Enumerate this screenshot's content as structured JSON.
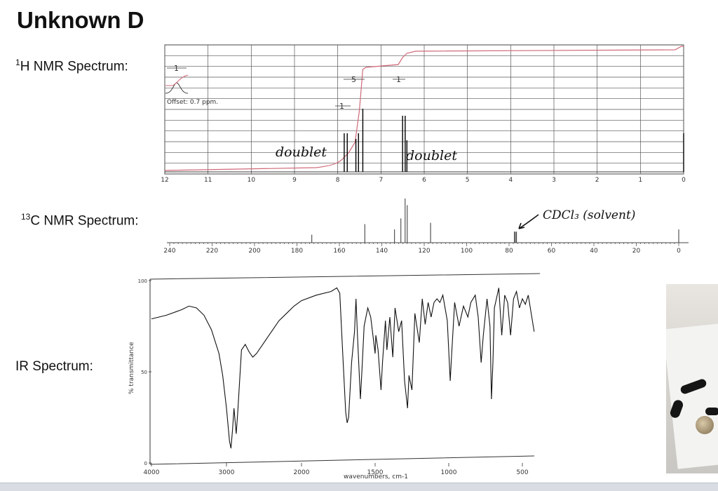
{
  "page": {
    "title": "Unknown D"
  },
  "labels": {
    "h_nmr_sup": "1",
    "h_nmr_text": "H NMR Spectrum:",
    "c_nmr_sup": "13",
    "c_nmr_text": "C NMR Spectrum:",
    "ir_text": "IR Spectrum:"
  },
  "annotations": {
    "offset": "Offset: 0.7 ppm.",
    "integ_1a": "1",
    "integ_1b": "1",
    "integ_5": "5",
    "integ_1c": "1",
    "doublet_left": "doublet",
    "doublet_right": "doublet",
    "solvent": "CDCl₃ (solvent)"
  },
  "chart_data": [
    {
      "type": "line",
      "name": "1H NMR",
      "x_range": [
        12,
        0
      ],
      "reversed": true,
      "x_ticks": [
        12,
        11,
        10,
        9,
        8,
        7,
        6,
        5,
        4,
        3,
        2,
        1,
        0
      ],
      "peaks_ppm": [
        {
          "x": 7.85,
          "h": 0.55
        },
        {
          "x": 7.78,
          "h": 0.55
        },
        {
          "x": 7.58,
          "h": 0.47
        },
        {
          "x": 7.52,
          "h": 0.55
        },
        {
          "x": 7.42,
          "h": 0.9
        },
        {
          "x": 6.5,
          "h": 0.8
        },
        {
          "x": 6.44,
          "h": 0.8
        },
        {
          "x": 6.4,
          "h": 0.45
        },
        {
          "x": 0.0,
          "h": 1.0
        }
      ],
      "integrals": [
        {
          "x": 7.8,
          "value": "1"
        },
        {
          "x": 7.5,
          "value": "5"
        },
        {
          "x": 6.45,
          "value": "1"
        }
      ]
    },
    {
      "type": "line",
      "name": "13C NMR",
      "x_range": [
        240,
        0
      ],
      "reversed": true,
      "x_ticks": [
        240,
        220,
        200,
        180,
        160,
        140,
        120,
        100,
        80,
        60,
        40,
        20,
        0
      ],
      "peaks_ppm": [
        {
          "x": 173,
          "h": 0.18
        },
        {
          "x": 148,
          "h": 0.42
        },
        {
          "x": 134,
          "h": 0.3
        },
        {
          "x": 131,
          "h": 0.55
        },
        {
          "x": 129,
          "h": 1.0
        },
        {
          "x": 128,
          "h": 0.85
        },
        {
          "x": 117,
          "h": 0.45
        },
        {
          "x": 77.5,
          "h": 0.25
        },
        {
          "x": 77,
          "h": 0.25
        },
        {
          "x": 76.5,
          "h": 0.25
        },
        {
          "x": 0,
          "h": 0.3
        }
      ]
    },
    {
      "type": "line",
      "name": "IR",
      "xlabel": "wavenumbers, cm-1",
      "ylabel": "% transmittance",
      "x_range": [
        4000,
        400
      ],
      "reversed": true,
      "y_range": [
        0,
        100
      ],
      "x_ticks": [
        4000,
        3000,
        2000,
        1500,
        1000,
        500
      ],
      "y_ticks": [
        0,
        50,
        100
      ],
      "points": [
        [
          4000,
          79
        ],
        [
          3800,
          81
        ],
        [
          3600,
          84
        ],
        [
          3500,
          86
        ],
        [
          3400,
          85
        ],
        [
          3300,
          81
        ],
        [
          3200,
          73
        ],
        [
          3100,
          60
        ],
        [
          3050,
          48
        ],
        [
          3000,
          30
        ],
        [
          2960,
          12
        ],
        [
          2940,
          8
        ],
        [
          2920,
          18
        ],
        [
          2900,
          30
        ],
        [
          2870,
          16
        ],
        [
          2850,
          28
        ],
        [
          2800,
          62
        ],
        [
          2750,
          65
        ],
        [
          2700,
          61
        ],
        [
          2650,
          58
        ],
        [
          2600,
          60
        ],
        [
          2500,
          66
        ],
        [
          2400,
          72
        ],
        [
          2300,
          78
        ],
        [
          2200,
          82
        ],
        [
          2100,
          86
        ],
        [
          2000,
          89
        ],
        [
          1900,
          92
        ],
        [
          1800,
          94
        ],
        [
          1760,
          96
        ],
        [
          1740,
          93
        ],
        [
          1720,
          60
        ],
        [
          1700,
          28
        ],
        [
          1690,
          22
        ],
        [
          1680,
          25
        ],
        [
          1660,
          55
        ],
        [
          1640,
          72
        ],
        [
          1630,
          90
        ],
        [
          1620,
          70
        ],
        [
          1600,
          35
        ],
        [
          1590,
          50
        ],
        [
          1575,
          75
        ],
        [
          1550,
          85
        ],
        [
          1530,
          80
        ],
        [
          1500,
          60
        ],
        [
          1495,
          70
        ],
        [
          1480,
          62
        ],
        [
          1460,
          40
        ],
        [
          1450,
          55
        ],
        [
          1430,
          78
        ],
        [
          1420,
          62
        ],
        [
          1400,
          80
        ],
        [
          1380,
          58
        ],
        [
          1365,
          85
        ],
        [
          1340,
          72
        ],
        [
          1320,
          78
        ],
        [
          1300,
          45
        ],
        [
          1280,
          30
        ],
        [
          1270,
          48
        ],
        [
          1250,
          40
        ],
        [
          1230,
          82
        ],
        [
          1200,
          66
        ],
        [
          1180,
          90
        ],
        [
          1160,
          76
        ],
        [
          1140,
          88
        ],
        [
          1120,
          80
        ],
        [
          1100,
          88
        ],
        [
          1080,
          90
        ],
        [
          1060,
          88
        ],
        [
          1040,
          92
        ],
        [
          1010,
          78
        ],
        [
          990,
          45
        ],
        [
          980,
          60
        ],
        [
          960,
          88
        ],
        [
          930,
          75
        ],
        [
          900,
          86
        ],
        [
          870,
          80
        ],
        [
          850,
          88
        ],
        [
          820,
          92
        ],
        [
          800,
          80
        ],
        [
          780,
          55
        ],
        [
          765,
          70
        ],
        [
          740,
          90
        ],
        [
          720,
          75
        ],
        [
          710,
          35
        ],
        [
          700,
          55
        ],
        [
          690,
          85
        ],
        [
          660,
          96
        ],
        [
          640,
          70
        ],
        [
          620,
          92
        ],
        [
          600,
          88
        ],
        [
          580,
          70
        ],
        [
          560,
          90
        ],
        [
          540,
          94
        ],
        [
          520,
          85
        ],
        [
          500,
          90
        ],
        [
          480,
          87
        ],
        [
          460,
          92
        ],
        [
          440,
          82
        ],
        [
          420,
          72
        ]
      ]
    }
  ]
}
